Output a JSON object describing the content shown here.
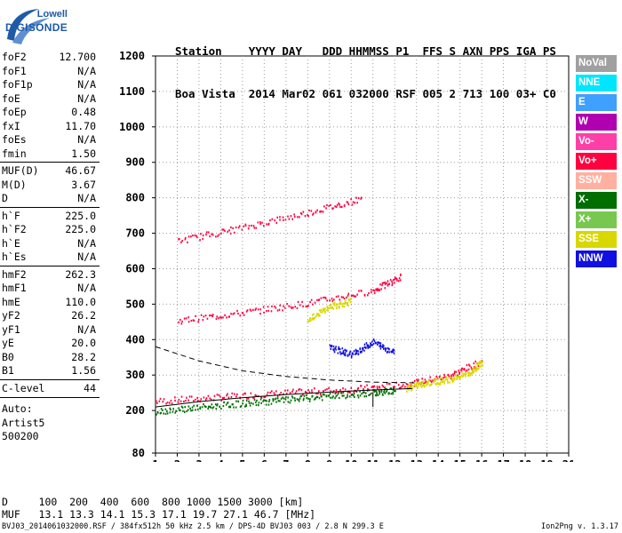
{
  "logo": {
    "top": "Lowell",
    "bottom": "DIGISONDE",
    "swoosh_color": "#1f5aa6"
  },
  "header": {
    "line1": "Station    YYYY DAY   DDD HHMMSS P1  FFS S AXN PPS IGA PS",
    "line2": "Boa Vista  2014 Mar02 061 032000 RSF 005 2 713 100 03+ C0"
  },
  "parameters": [
    {
      "name": "foF2",
      "value": "12.700"
    },
    {
      "name": "foF1",
      "value": "N/A"
    },
    {
      "name": "foF1p",
      "value": "N/A"
    },
    {
      "name": "foE",
      "value": "N/A"
    },
    {
      "name": "foEp",
      "value": "0.48"
    },
    {
      "name": "fxI",
      "value": "11.70"
    },
    {
      "name": "foEs",
      "value": "N/A"
    },
    {
      "name": "fmin",
      "value": "1.50"
    },
    {
      "name": "MUF(D)",
      "value": "46.67"
    },
    {
      "name": "M(D)",
      "value": "3.67"
    },
    {
      "name": "D",
      "value": "N/A"
    },
    {
      "name": "h`F",
      "value": "225.0"
    },
    {
      "name": "h`F2",
      "value": "225.0"
    },
    {
      "name": "h`E",
      "value": "N/A"
    },
    {
      "name": "h`Es",
      "value": "N/A"
    },
    {
      "name": "hmF2",
      "value": "262.3"
    },
    {
      "name": "hmF1",
      "value": "N/A"
    },
    {
      "name": "hmE",
      "value": "110.0"
    },
    {
      "name": "yF2",
      "value": "26.2"
    },
    {
      "name": "yF1",
      "value": "N/A"
    },
    {
      "name": "yE",
      "value": "20.0"
    },
    {
      "name": "B0",
      "value": "28.2"
    },
    {
      "name": "B1",
      "value": "1.56"
    },
    {
      "name": "C-level",
      "value": "44"
    }
  ],
  "auto": {
    "line1": "Auto:",
    "line2": "Artist5",
    "line3": "500200"
  },
  "legend": [
    {
      "label": "NoVal",
      "color": "#a0a0a0"
    },
    {
      "label": "NNE",
      "color": "#00e6ff"
    },
    {
      "label": "E",
      "color": "#3fa0ff"
    },
    {
      "label": "W",
      "color": "#b000b0"
    },
    {
      "label": "Vo-",
      "color": "#ff3fa8"
    },
    {
      "label": "Vo+",
      "color": "#ff0040"
    },
    {
      "label": "SSW",
      "color": "#ffb0a0"
    },
    {
      "label": "X-",
      "color": "#006e00"
    },
    {
      "label": "X+",
      "color": "#78c850"
    },
    {
      "label": "SSE",
      "color": "#d8d800"
    },
    {
      "label": "NNW",
      "color": "#1010e0"
    }
  ],
  "footer": {
    "d_line": "D     100  200  400  600  800 1000 1500 3000 [km]",
    "muf_line": "MUF   13.1 13.3 14.1 15.3 17.1 19.7 27.1 46.7 [MHz]",
    "footnote": "BVJ03_2014061032000.RSF / 384fx512h 50 kHz 2.5 km / DPS-4D BVJ03 003 / 2.8 N 299.3 E",
    "version": "Ion2Png v. 1.3.17"
  },
  "chart_data": {
    "type": "scatter",
    "xlim": [
      1,
      20
    ],
    "ylim": [
      80,
      1200
    ],
    "x_ticks": [
      1,
      2,
      3,
      4,
      5,
      6,
      7,
      8,
      9,
      10,
      11,
      12,
      13,
      14,
      15,
      16,
      17,
      18,
      19,
      20
    ],
    "x_tick_labels": [
      "1",
      "2",
      "3",
      "4",
      "5",
      "6",
      "7",
      "8",
      "9",
      "10",
      "11",
      "12",
      "13",
      "14",
      "15",
      "16",
      "17",
      "18",
      "19",
      "20"
    ],
    "y_ticks": [
      80,
      200,
      300,
      400,
      500,
      600,
      700,
      800,
      900,
      1000,
      1100,
      1200
    ],
    "y_tick_labels": [
      "80",
      "200",
      "300",
      "400",
      "500",
      "600",
      "700",
      "800",
      "900",
      "1000",
      "1100",
      "1200"
    ],
    "grid": "dotted",
    "legend_position": "right",
    "series": [
      {
        "name": "Vo+",
        "traces": [
          {
            "x": [
              1.0,
              4.0,
              7.0,
              10.0,
              12.5,
              14.5,
              16.0
            ],
            "y": [
              228,
              240,
              252,
              262,
              275,
              300,
              340
            ]
          },
          {
            "x": [
              2.0,
              5.0,
              8.0,
              11.0,
              12.3
            ],
            "y": [
              455,
              478,
              505,
              540,
              580
            ]
          },
          {
            "x": [
              2.0,
              5.0,
              8.0,
              10.5
            ],
            "y": [
              680,
              718,
              760,
              800
            ]
          }
        ]
      },
      {
        "name": "SSE",
        "traces": [
          {
            "x": [
              12.5,
              13.5,
              14.5,
              15.5,
              16.0
            ],
            "y": [
              265,
              280,
              290,
              310,
              340
            ]
          },
          {
            "x": [
              8.0,
              9.0,
              10.0
            ],
            "y": [
              460,
              495,
              510
            ]
          }
        ]
      },
      {
        "name": "NNW",
        "traces": [
          {
            "x": [
              9.0,
              10.0,
              11.0,
              12.0
            ],
            "y": [
              380,
              360,
              395,
              365
            ]
          }
        ]
      },
      {
        "name": "X-",
        "traces": [
          {
            "x": [
              1.0,
              3.0,
              5.0,
              7.0,
              9.0,
              11.0,
              12.0
            ],
            "y": [
              200,
              211,
              222,
              232,
              242,
              252,
              258
            ]
          }
        ]
      }
    ],
    "curves": [
      {
        "style": "solid",
        "x": [
          1.0,
          3.0,
          5.0,
          7.0,
          9.0,
          11.0,
          12.8
        ],
        "y": [
          210,
          225,
          236,
          245,
          252,
          258,
          262
        ]
      },
      {
        "style": "dashed",
        "x": [
          1.0,
          3.0,
          5.0,
          7.0,
          9.0,
          11.0,
          13.0
        ],
        "y": [
          380,
          340,
          312,
          296,
          286,
          280,
          278
        ]
      },
      {
        "style": "solid",
        "x": [
          11.0,
          11.0
        ],
        "y": [
          210,
          252
        ]
      }
    ]
  }
}
